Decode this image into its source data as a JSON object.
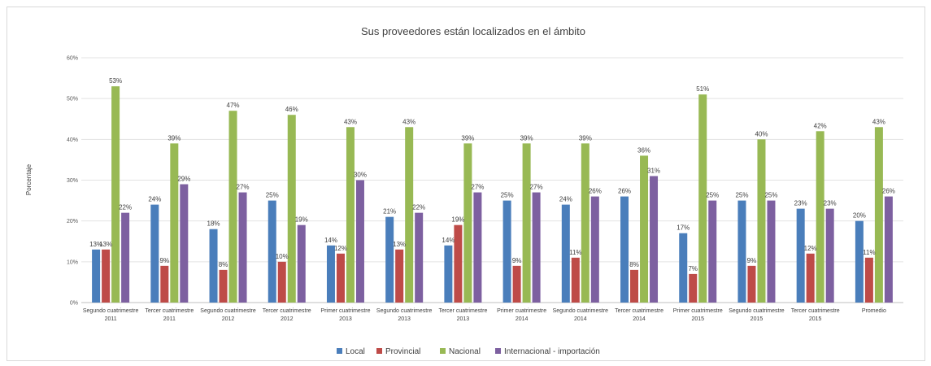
{
  "chart_data": {
    "type": "bar",
    "title": "Sus proveedores están localizados en el ámbito",
    "ylabel": "Porcentaje",
    "xlabel": "",
    "ylim": [
      0,
      60
    ],
    "yticks": [
      "0%",
      "10%",
      "20%",
      "30%",
      "40%",
      "50%",
      "60%"
    ],
    "grid": true,
    "legend_position": "bottom",
    "categories": [
      [
        "Segundo cuatrimestre",
        "2011"
      ],
      [
        "Tercer cuatrimestre",
        "2011"
      ],
      [
        "Segundo cuatrimestre",
        "2012"
      ],
      [
        "Tercer cuatrimestre",
        "2012"
      ],
      [
        "Primer cuatrimestre",
        "2013"
      ],
      [
        "Segundo cuatrimestre",
        "2013"
      ],
      [
        "Tercer cuatrimestre",
        "2013"
      ],
      [
        "Primer cuatrimestre",
        "2014"
      ],
      [
        "Segundo cuatrimestre",
        "2014"
      ],
      [
        "Tercer cuatrimestre",
        "2014"
      ],
      [
        "Primer cuatrimestre",
        "2015"
      ],
      [
        "Segundo cuatrimestre",
        "2015"
      ],
      [
        "Tercer cuatrimestre",
        "2015"
      ],
      [
        "Promedio"
      ]
    ],
    "series": [
      {
        "name": "Local",
        "color": "#4a7ebb",
        "values": [
          13,
          24,
          18,
          25,
          14,
          21,
          14,
          25,
          24,
          26,
          17,
          25,
          23,
          20
        ],
        "labels": [
          "13%",
          "24%",
          "18%",
          "25%",
          "14%",
          "21%",
          "14%",
          "25%",
          "24%",
          "26%",
          "17%",
          "25%",
          "23%",
          "20%"
        ]
      },
      {
        "name": "Provincial",
        "color": "#be4b48",
        "values": [
          13,
          9,
          8,
          10,
          12,
          13,
          19,
          9,
          11,
          8,
          7,
          9,
          12,
          11
        ],
        "labels": [
          "13%",
          "9%",
          "8%",
          "10%",
          "12%",
          "13%",
          "19%",
          "9%",
          "11%",
          "8%",
          "7%",
          "9%",
          "12%",
          "11%"
        ]
      },
      {
        "name": "Nacional",
        "color": "#98b954",
        "values": [
          53,
          39,
          47,
          46,
          43,
          43,
          39,
          39,
          39,
          36,
          51,
          40,
          42,
          43
        ],
        "labels": [
          "53%",
          "39%",
          "47%",
          "46%",
          "43%",
          "43%",
          "39%",
          "39%",
          "39%",
          "36%",
          "51%",
          "40%",
          "42%",
          "43%"
        ]
      },
      {
        "name": "Internacional - importación",
        "color": "#7d60a0",
        "values": [
          22,
          29,
          27,
          19,
          30,
          22,
          27,
          27,
          26,
          31,
          25,
          25,
          23,
          26
        ],
        "labels": [
          "22%",
          "29%",
          "27%",
          "19%",
          "30%",
          "22%",
          "27%",
          "27%",
          "26%",
          "31%",
          "25%",
          "25%",
          "23%",
          "26%"
        ]
      }
    ]
  }
}
